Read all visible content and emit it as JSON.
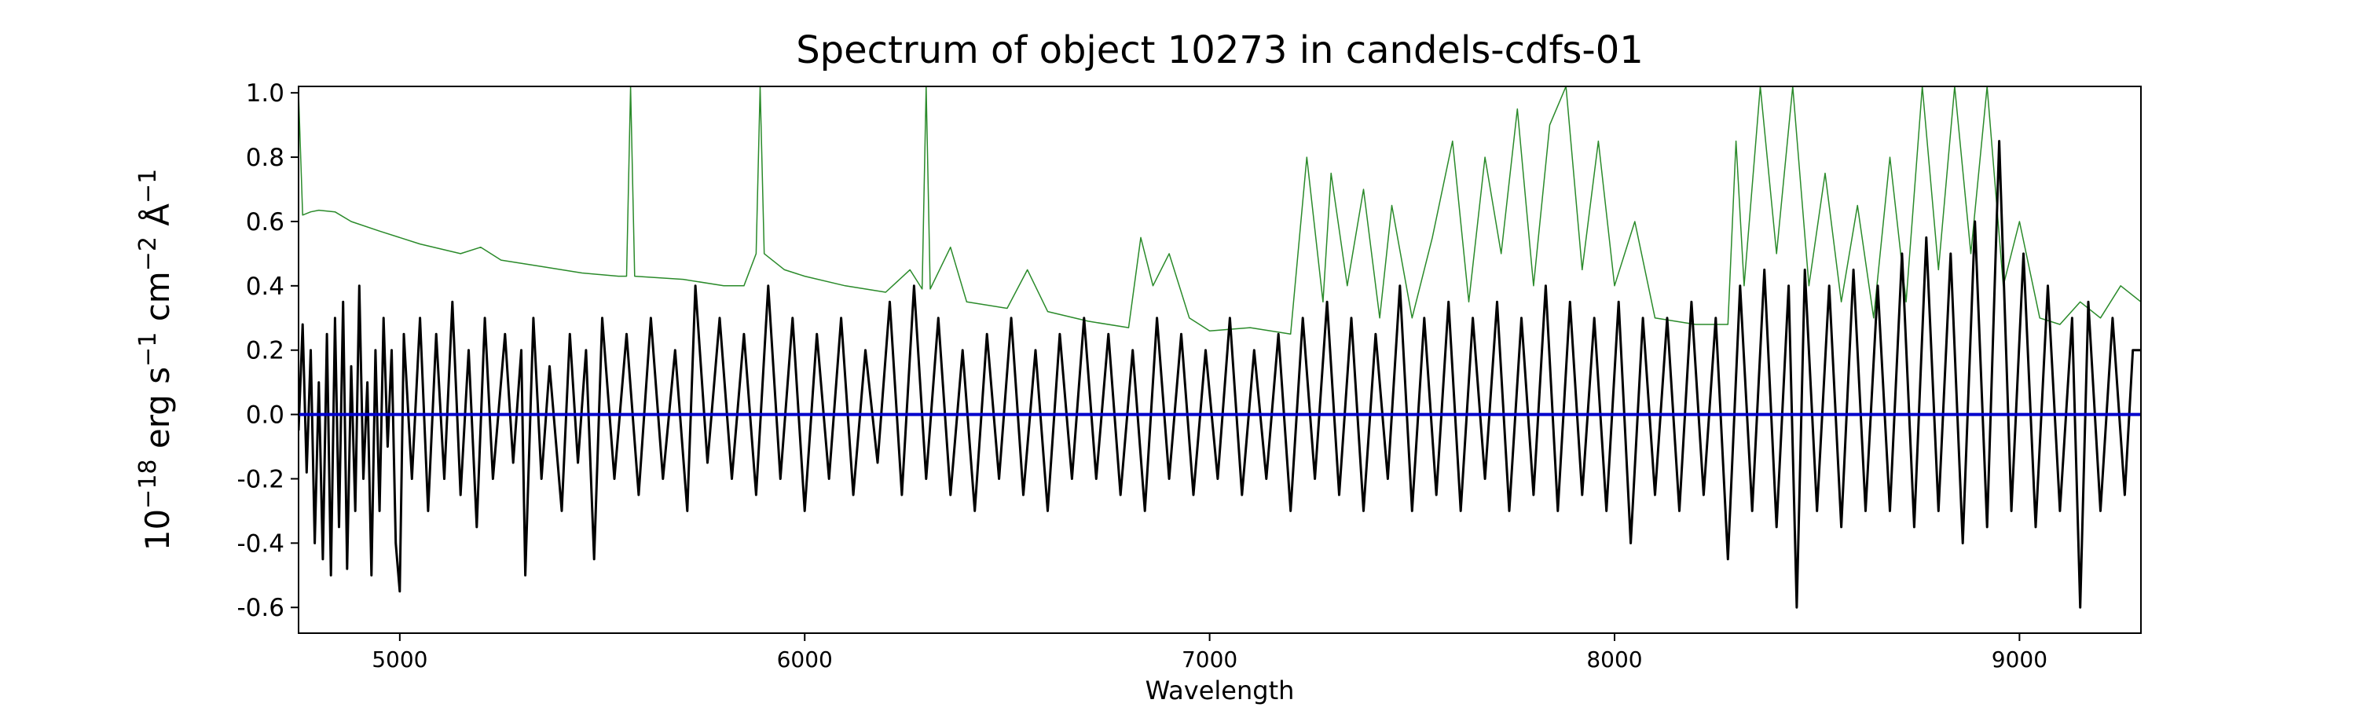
{
  "chart_data": {
    "type": "line",
    "title": "Spectrum of object 10273 in candels-cdfs-01",
    "xlabel": "Wavelength",
    "ylabel": "10^-18 erg s^-1 cm^-2 Å^-1",
    "xlim": [
      4750,
      9300
    ],
    "ylim": [
      -0.68,
      1.02
    ],
    "xticks": [
      5000,
      6000,
      7000,
      8000,
      9000
    ],
    "yticks": [
      -0.6,
      -0.4,
      -0.2,
      0.0,
      0.2,
      0.4,
      0.6,
      0.8,
      1.0
    ],
    "xtick_labels": [
      "5000",
      "6000",
      "7000",
      "8000",
      "9000"
    ],
    "ytick_labels": [
      "-0.6",
      "-0.4",
      "-0.2",
      "0.0",
      "0.2",
      "0.4",
      "0.6",
      "0.8",
      "1.0"
    ],
    "grid": false,
    "legend": "none",
    "series": [
      {
        "role": "error-spectrum",
        "color": "#2a8a2a",
        "points": [
          [
            4750,
            1.0
          ],
          [
            4760,
            0.62
          ],
          [
            4780,
            0.63
          ],
          [
            4800,
            0.635
          ],
          [
            4840,
            0.63
          ],
          [
            4880,
            0.6
          ],
          [
            4950,
            0.57
          ],
          [
            5050,
            0.53
          ],
          [
            5150,
            0.5
          ],
          [
            5200,
            0.52
          ],
          [
            5250,
            0.48
          ],
          [
            5350,
            0.46
          ],
          [
            5450,
            0.44
          ],
          [
            5540,
            0.43
          ],
          [
            5560,
            0.43
          ],
          [
            5570,
            1.02
          ],
          [
            5580,
            0.43
          ],
          [
            5700,
            0.42
          ],
          [
            5800,
            0.4
          ],
          [
            5850,
            0.4
          ],
          [
            5880,
            0.5
          ],
          [
            5890,
            1.02
          ],
          [
            5900,
            0.5
          ],
          [
            5950,
            0.45
          ],
          [
            6000,
            0.43
          ],
          [
            6100,
            0.4
          ],
          [
            6200,
            0.38
          ],
          [
            6260,
            0.45
          ],
          [
            6290,
            0.39
          ],
          [
            6300,
            1.02
          ],
          [
            6310,
            0.39
          ],
          [
            6360,
            0.52
          ],
          [
            6400,
            0.35
          ],
          [
            6500,
            0.33
          ],
          [
            6550,
            0.45
          ],
          [
            6600,
            0.32
          ],
          [
            6700,
            0.29
          ],
          [
            6800,
            0.27
          ],
          [
            6830,
            0.55
          ],
          [
            6860,
            0.4
          ],
          [
            6900,
            0.5
          ],
          [
            6950,
            0.3
          ],
          [
            7000,
            0.26
          ],
          [
            7100,
            0.27
          ],
          [
            7200,
            0.25
          ],
          [
            7240,
            0.8
          ],
          [
            7280,
            0.35
          ],
          [
            7300,
            0.75
          ],
          [
            7340,
            0.4
          ],
          [
            7380,
            0.7
          ],
          [
            7420,
            0.3
          ],
          [
            7450,
            0.65
          ],
          [
            7500,
            0.3
          ],
          [
            7550,
            0.55
          ],
          [
            7600,
            0.85
          ],
          [
            7640,
            0.35
          ],
          [
            7680,
            0.8
          ],
          [
            7720,
            0.5
          ],
          [
            7760,
            0.95
          ],
          [
            7800,
            0.4
          ],
          [
            7840,
            0.9
          ],
          [
            7880,
            1.02
          ],
          [
            7920,
            0.45
          ],
          [
            7960,
            0.85
          ],
          [
            8000,
            0.4
          ],
          [
            8050,
            0.6
          ],
          [
            8100,
            0.3
          ],
          [
            8200,
            0.28
          ],
          [
            8280,
            0.28
          ],
          [
            8300,
            0.85
          ],
          [
            8320,
            0.4
          ],
          [
            8360,
            1.02
          ],
          [
            8400,
            0.5
          ],
          [
            8440,
            1.02
          ],
          [
            8480,
            0.4
          ],
          [
            8520,
            0.75
          ],
          [
            8560,
            0.35
          ],
          [
            8600,
            0.65
          ],
          [
            8640,
            0.3
          ],
          [
            8680,
            0.8
          ],
          [
            8720,
            0.35
          ],
          [
            8760,
            1.02
          ],
          [
            8800,
            0.45
          ],
          [
            8840,
            1.02
          ],
          [
            8880,
            0.5
          ],
          [
            8920,
            1.02
          ],
          [
            8960,
            0.4
          ],
          [
            9000,
            0.6
          ],
          [
            9050,
            0.3
          ],
          [
            9100,
            0.28
          ],
          [
            9150,
            0.35
          ],
          [
            9200,
            0.3
          ],
          [
            9250,
            0.4
          ],
          [
            9300,
            0.35
          ]
        ]
      },
      {
        "role": "flux-spectrum",
        "color": "#000000",
        "points": [
          [
            4750,
            -0.05
          ],
          [
            4760,
            0.28
          ],
          [
            4770,
            -0.18
          ],
          [
            4780,
            0.2
          ],
          [
            4790,
            -0.4
          ],
          [
            4800,
            0.1
          ],
          [
            4810,
            -0.45
          ],
          [
            4820,
            0.25
          ],
          [
            4830,
            -0.5
          ],
          [
            4840,
            0.3
          ],
          [
            4850,
            -0.35
          ],
          [
            4860,
            0.35
          ],
          [
            4870,
            -0.48
          ],
          [
            4880,
            0.15
          ],
          [
            4890,
            -0.3
          ],
          [
            4900,
            0.4
          ],
          [
            4910,
            -0.2
          ],
          [
            4920,
            0.1
          ],
          [
            4930,
            -0.5
          ],
          [
            4940,
            0.2
          ],
          [
            4950,
            -0.3
          ],
          [
            4960,
            0.3
          ],
          [
            4970,
            -0.1
          ],
          [
            4980,
            0.2
          ],
          [
            4990,
            -0.4
          ],
          [
            5000,
            -0.55
          ],
          [
            5010,
            0.25
          ],
          [
            5030,
            -0.2
          ],
          [
            5050,
            0.3
          ],
          [
            5070,
            -0.3
          ],
          [
            5090,
            0.25
          ],
          [
            5110,
            -0.2
          ],
          [
            5130,
            0.35
          ],
          [
            5150,
            -0.25
          ],
          [
            5170,
            0.2
          ],
          [
            5190,
            -0.35
          ],
          [
            5210,
            0.3
          ],
          [
            5230,
            -0.2
          ],
          [
            5260,
            0.25
          ],
          [
            5280,
            -0.15
          ],
          [
            5300,
            0.2
          ],
          [
            5310,
            -0.5
          ],
          [
            5330,
            0.3
          ],
          [
            5350,
            -0.2
          ],
          [
            5370,
            0.15
          ],
          [
            5400,
            -0.3
          ],
          [
            5420,
            0.25
          ],
          [
            5440,
            -0.15
          ],
          [
            5460,
            0.2
          ],
          [
            5480,
            -0.45
          ],
          [
            5500,
            0.3
          ],
          [
            5530,
            -0.2
          ],
          [
            5560,
            0.25
          ],
          [
            5590,
            -0.25
          ],
          [
            5620,
            0.3
          ],
          [
            5650,
            -0.2
          ],
          [
            5680,
            0.2
          ],
          [
            5710,
            -0.3
          ],
          [
            5730,
            0.4
          ],
          [
            5760,
            -0.15
          ],
          [
            5790,
            0.3
          ],
          [
            5820,
            -0.2
          ],
          [
            5850,
            0.25
          ],
          [
            5880,
            -0.25
          ],
          [
            5910,
            0.4
          ],
          [
            5940,
            -0.2
          ],
          [
            5970,
            0.3
          ],
          [
            6000,
            -0.3
          ],
          [
            6030,
            0.25
          ],
          [
            6060,
            -0.2
          ],
          [
            6090,
            0.3
          ],
          [
            6120,
            -0.25
          ],
          [
            6150,
            0.2
          ],
          [
            6180,
            -0.15
          ],
          [
            6210,
            0.35
          ],
          [
            6240,
            -0.25
          ],
          [
            6270,
            0.4
          ],
          [
            6300,
            -0.2
          ],
          [
            6330,
            0.3
          ],
          [
            6360,
            -0.25
          ],
          [
            6390,
            0.2
          ],
          [
            6420,
            -0.3
          ],
          [
            6450,
            0.25
          ],
          [
            6480,
            -0.2
          ],
          [
            6510,
            0.3
          ],
          [
            6540,
            -0.25
          ],
          [
            6570,
            0.2
          ],
          [
            6600,
            -0.3
          ],
          [
            6630,
            0.25
          ],
          [
            6660,
            -0.2
          ],
          [
            6690,
            0.3
          ],
          [
            6720,
            -0.2
          ],
          [
            6750,
            0.25
          ],
          [
            6780,
            -0.25
          ],
          [
            6810,
            0.2
          ],
          [
            6840,
            -0.3
          ],
          [
            6870,
            0.3
          ],
          [
            6900,
            -0.2
          ],
          [
            6930,
            0.25
          ],
          [
            6960,
            -0.25
          ],
          [
            6990,
            0.2
          ],
          [
            7020,
            -0.2
          ],
          [
            7050,
            0.3
          ],
          [
            7080,
            -0.25
          ],
          [
            7110,
            0.2
          ],
          [
            7140,
            -0.2
          ],
          [
            7170,
            0.25
          ],
          [
            7200,
            -0.3
          ],
          [
            7230,
            0.3
          ],
          [
            7260,
            -0.2
          ],
          [
            7290,
            0.35
          ],
          [
            7320,
            -0.25
          ],
          [
            7350,
            0.3
          ],
          [
            7380,
            -0.3
          ],
          [
            7410,
            0.25
          ],
          [
            7440,
            -0.2
          ],
          [
            7470,
            0.4
          ],
          [
            7500,
            -0.3
          ],
          [
            7530,
            0.3
          ],
          [
            7560,
            -0.25
          ],
          [
            7590,
            0.35
          ],
          [
            7620,
            -0.3
          ],
          [
            7650,
            0.3
          ],
          [
            7680,
            -0.2
          ],
          [
            7710,
            0.35
          ],
          [
            7740,
            -0.3
          ],
          [
            7770,
            0.3
          ],
          [
            7800,
            -0.25
          ],
          [
            7830,
            0.4
          ],
          [
            7860,
            -0.3
          ],
          [
            7890,
            0.35
          ],
          [
            7920,
            -0.25
          ],
          [
            7950,
            0.3
          ],
          [
            7980,
            -0.3
          ],
          [
            8010,
            0.35
          ],
          [
            8040,
            -0.4
          ],
          [
            8070,
            0.3
          ],
          [
            8100,
            -0.25
          ],
          [
            8130,
            0.3
          ],
          [
            8160,
            -0.3
          ],
          [
            8190,
            0.35
          ],
          [
            8220,
            -0.25
          ],
          [
            8250,
            0.3
          ],
          [
            8280,
            -0.45
          ],
          [
            8310,
            0.4
          ],
          [
            8340,
            -0.3
          ],
          [
            8370,
            0.45
          ],
          [
            8400,
            -0.35
          ],
          [
            8430,
            0.4
          ],
          [
            8450,
            -0.6
          ],
          [
            8470,
            0.45
          ],
          [
            8500,
            -0.3
          ],
          [
            8530,
            0.4
          ],
          [
            8560,
            -0.35
          ],
          [
            8590,
            0.45
          ],
          [
            8620,
            -0.3
          ],
          [
            8650,
            0.4
          ],
          [
            8680,
            -0.3
          ],
          [
            8710,
            0.5
          ],
          [
            8740,
            -0.35
          ],
          [
            8770,
            0.55
          ],
          [
            8800,
            -0.3
          ],
          [
            8830,
            0.5
          ],
          [
            8860,
            -0.4
          ],
          [
            8890,
            0.6
          ],
          [
            8920,
            -0.35
          ],
          [
            8950,
            0.85
          ],
          [
            8980,
            -0.3
          ],
          [
            9010,
            0.5
          ],
          [
            9040,
            -0.35
          ],
          [
            9070,
            0.4
          ],
          [
            9100,
            -0.3
          ],
          [
            9130,
            0.3
          ],
          [
            9150,
            -0.6
          ],
          [
            9170,
            0.35
          ],
          [
            9200,
            -0.3
          ],
          [
            9230,
            0.3
          ],
          [
            9260,
            -0.25
          ],
          [
            9280,
            0.2
          ],
          [
            9300,
            0.2
          ]
        ]
      },
      {
        "role": "zero-line",
        "color": "#0000cc",
        "points": [
          [
            4750,
            0.0
          ],
          [
            9300,
            0.0
          ]
        ]
      }
    ]
  }
}
